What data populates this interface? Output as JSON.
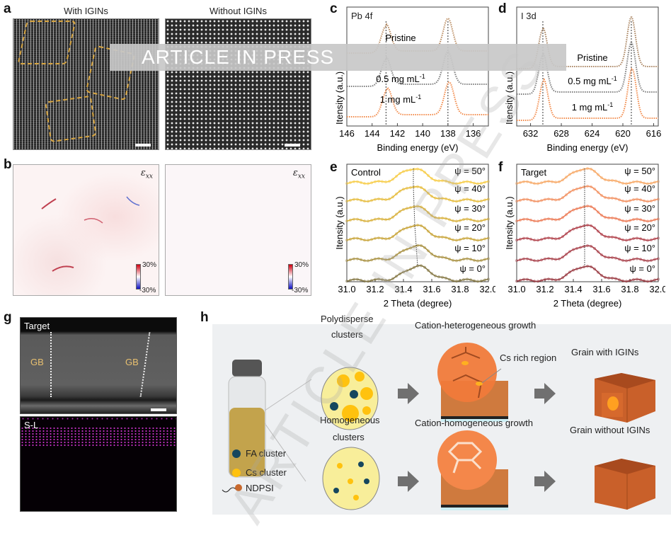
{
  "watermark": {
    "banner": "ARTICLE IN PRESS",
    "diagonal": "ARTICLE IN PRESS"
  },
  "panel_a": {
    "label": "a",
    "left_title": "With IGINs",
    "right_title": "Without IGINs"
  },
  "panel_b": {
    "label": "b",
    "map_symbol": "ε",
    "map_sub": "xx",
    "cbar_max": "30%",
    "cbar_min": "-30%"
  },
  "chart_data": [
    {
      "panel": "c",
      "type": "line",
      "title": "Pb 4f",
      "title_main": "Pb 4",
      "title_italic": "f",
      "xlabel": "Binding energy (eV)",
      "ylabel": "Itensity (a.u.)",
      "xlim": [
        146,
        134.8
      ],
      "x_reversed": true,
      "xticks": [
        146,
        144,
        142,
        140,
        138,
        136
      ],
      "peak_markers": [
        142.9,
        138.0
      ],
      "series": [
        {
          "name": "Pristine",
          "sup": "",
          "color": "#b98a5e",
          "peaks": [
            142.9,
            138.0
          ]
        },
        {
          "name": "0.5 mg mL",
          "sup": "-1",
          "color": "#7d7d7d",
          "peaks": [
            142.9,
            138.0
          ]
        },
        {
          "name": "1 mg mL",
          "sup": "-1",
          "color": "#f28a4a",
          "peaks": [
            142.8,
            137.9
          ]
        }
      ]
    },
    {
      "panel": "d",
      "type": "line",
      "title": "I 3d",
      "title_main": "I 3",
      "title_italic": "d",
      "xlabel": "Binding energy (eV)",
      "ylabel": "Itensity (a.u.)",
      "xlim": [
        633.8,
        615.4
      ],
      "x_reversed": true,
      "xticks": [
        632,
        628,
        624,
        620,
        616
      ],
      "peak_markers": [
        630.4,
        618.9
      ],
      "series": [
        {
          "name": "Pristine",
          "sup": "",
          "color": "#a8825e",
          "peaks": [
            630.4,
            618.9
          ]
        },
        {
          "name": "0.5 mg mL",
          "sup": "-1",
          "color": "#7d7d7d",
          "peaks": [
            630.4,
            618.9
          ]
        },
        {
          "name": "1 mg mL",
          "sup": "-1",
          "color": "#f28a4a",
          "peaks": [
            630.3,
            618.8
          ]
        }
      ]
    },
    {
      "panel": "e",
      "type": "line",
      "title": "Control",
      "xlabel": "2 Theta (degree)",
      "ylabel": "Itensity (a.u.)",
      "xlim": [
        31.0,
        32.0
      ],
      "xticks": [
        "31.0",
        "31.2",
        "31.4",
        "31.6",
        "31.8",
        "32.0"
      ],
      "series": [
        {
          "name": "ψ = 50°",
          "color": "#f7cc45",
          "peak": 31.47
        },
        {
          "name": "ψ = 40°",
          "color": "#e6bc3c",
          "peak": 31.47
        },
        {
          "name": "ψ = 30°",
          "color": "#d8b03a",
          "peak": 31.475
        },
        {
          "name": "ψ = 20°",
          "color": "#c8a438",
          "peak": 31.48
        },
        {
          "name": "ψ = 10°",
          "color": "#a89040",
          "peak": 31.49
        },
        {
          "name": "ψ = 0°",
          "color": "#857845",
          "peak": 31.5
        }
      ]
    },
    {
      "panel": "f",
      "type": "line",
      "title": "Target",
      "xlabel": "2 Theta (degree)",
      "ylabel": "Itensity (a.u.)",
      "xlim": [
        31.0,
        32.0
      ],
      "xticks": [
        "31.0",
        "31.2",
        "31.4",
        "31.6",
        "31.8",
        "32.0"
      ],
      "series": [
        {
          "name": "ψ = 50°",
          "color": "#f7a865",
          "peak": 31.48
        },
        {
          "name": "ψ = 40°",
          "color": "#f29060",
          "peak": 31.48
        },
        {
          "name": "ψ = 30°",
          "color": "#ec7a55",
          "peak": 31.48
        },
        {
          "name": "ψ = 20°",
          "color": "#b0404a",
          "peak": 31.48
        },
        {
          "name": "ψ = 10°",
          "color": "#a8404a",
          "peak": 31.48
        },
        {
          "name": "ψ = 0°",
          "color": "#9a3a42",
          "peak": 31.48
        }
      ]
    }
  ],
  "panel_g": {
    "label": "g",
    "top_title": "Target",
    "gb_label": "GB",
    "bottom_title": "S-L"
  },
  "panel_h": {
    "label": "h",
    "poly_clusters": "Polydisperse",
    "poly_clusters2": "clusters",
    "homo_clusters": "Homogeneous",
    "homo_clusters2": "clusters",
    "hetero_growth": "Cation-heterogeneous growth",
    "homo_growth": "Cation-homogeneous growth",
    "cs_rich": "Cs rich region",
    "grain_with": "Grain with IGINs",
    "grain_without": "Grain without IGINs",
    "legend": [
      {
        "label": "FA cluster",
        "color": "#16475e"
      },
      {
        "label": "Cs cluster",
        "color": "#ffc20e"
      },
      {
        "label": "NDPSI",
        "color": "#c8692e"
      }
    ],
    "colors": {
      "perovskite": "#e87a3c",
      "grain": "#c9602a",
      "arrow": "#707070"
    }
  }
}
